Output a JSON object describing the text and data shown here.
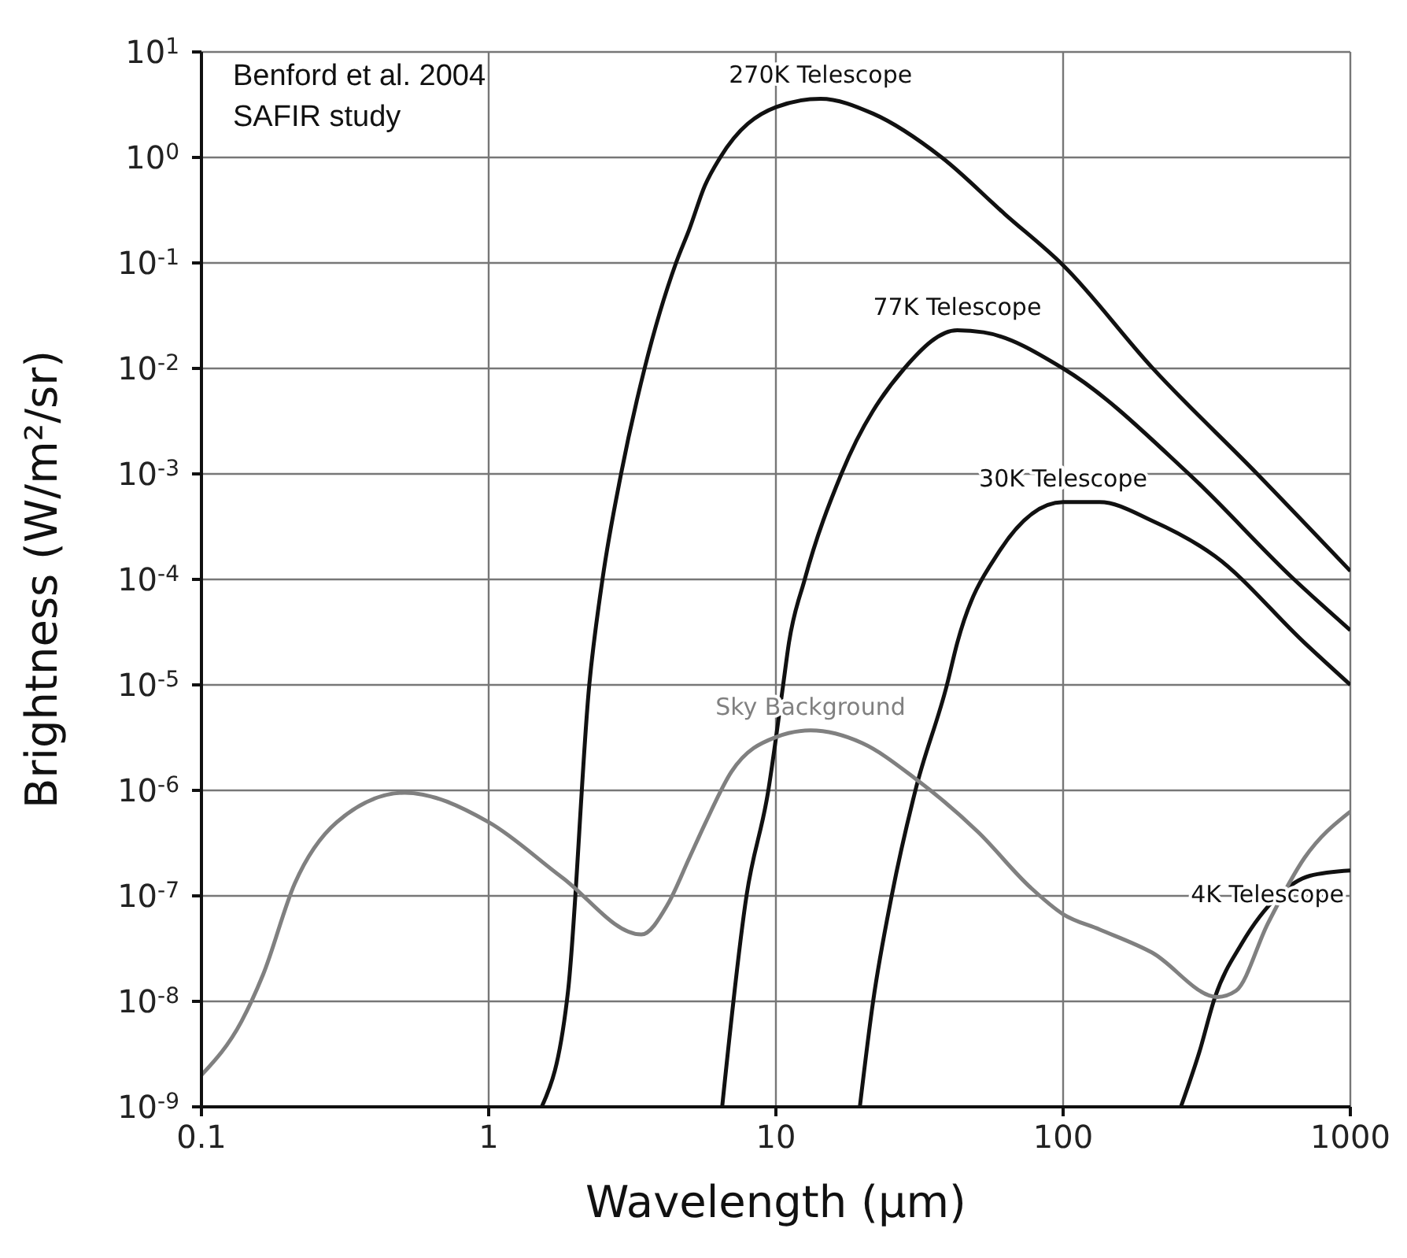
{
  "chart_data": {
    "type": "line",
    "xlabel": "Wavelength (μm)",
    "ylabel": "Brightness (W/m²/sr)",
    "log": "xy",
    "grid": true,
    "marker": "none",
    "line_style": "solid",
    "annotations": [
      "Benford et al. 2004",
      "SAFIR study"
    ],
    "xlim": [
      0.1,
      1000
    ],
    "xticks": [
      0.1,
      1,
      10,
      100,
      1000
    ],
    "ylim": [
      1e-09,
      10
    ],
    "yticks": [
      {
        "value": 1e-09,
        "label": "10$^{-9}$"
      },
      {
        "value": 1e-08,
        "label": "10$^{-8}$"
      },
      {
        "value": 1e-07,
        "label": "10$^{-7}$"
      },
      {
        "value": 1e-06,
        "label": "10$^{-6}$"
      },
      {
        "value": 1e-05,
        "label": "10$^{-5}$"
      },
      {
        "value": 0.0001,
        "label": "10$^{-4}$"
      },
      {
        "value": 0.001,
        "label": "10$^{-3}$"
      },
      {
        "value": 0.01,
        "label": "10$^{-2}$"
      },
      {
        "value": 0.1,
        "label": "10$^{-1}$"
      },
      {
        "value": 1,
        "label": "10$^{0}$"
      },
      {
        "value": 10,
        "label": "10$^{1}$"
      }
    ],
    "series": [
      {
        "name": "270K Telescope",
        "color": "#111111",
        "x": [
          1.53,
          1.89,
          2.24,
          2.49,
          2.89,
          3.49,
          4.49,
          5.0,
          5.66,
          6.4,
          10,
          14.3,
          21.8,
          37.8,
          62.7,
          100,
          204,
          474,
          1000
        ],
        "values": [
          1e-09,
          1.26e-08,
          1e-05,
          0.0001,
          0.001,
          0.01,
          0.1,
          0.21,
          0.54,
          1.0,
          3.0,
          3.6,
          2.6,
          1.0,
          0.29,
          0.095,
          0.0102,
          0.001,
          0.00012
        ]
      },
      {
        "name": "77K Telescope",
        "color": "#111111",
        "x": [
          6.5,
          7.9,
          9.4,
          10.6,
          11.1,
          12.6,
          16.9,
          28,
          42.8,
          52.9,
          100,
          274,
          637,
          1000
        ],
        "values": [
          1e-09,
          1e-07,
          9.8e-07,
          1e-05,
          2.5e-05,
          0.0001,
          0.001,
          0.01,
          0.023,
          0.022,
          0.01,
          0.001,
          0.0001,
          3.3e-05
        ]
      },
      {
        "name": "30K Telescope",
        "color": "#111111",
        "x": [
          19.6,
          21.8,
          25.3,
          30.6,
          39.4,
          42.8,
          60,
          100,
          134,
          204,
          338,
          693,
          1000
        ],
        "values": [
          1e-09,
          1e-08,
          1e-07,
          1e-06,
          1e-05,
          2.5e-05,
          0.000185,
          0.00054,
          0.00054,
          0.00036,
          0.000166,
          2.5e-05,
          1e-05
        ]
      },
      {
        "name": "4K Telescope",
        "color": "#111111",
        "x": [
          257,
          298,
          338,
          418,
          561,
          723,
          1000
        ],
        "values": [
          1e-09,
          3.3e-09,
          1.1e-08,
          3.5e-08,
          1e-07,
          1.55e-07,
          1.74e-07
        ]
      },
      {
        "name": "Sky Background",
        "color": "#808080",
        "x": [
          0.1,
          0.138,
          0.164,
          0.211,
          0.296,
          0.51,
          1,
          1.8,
          3.4,
          4.2,
          5.0,
          5.7,
          7.0,
          10,
          13.2,
          20,
          30.5,
          50.7,
          77,
          100,
          134,
          204,
          345,
          400,
          515,
          693,
          1000
        ],
        "values": [
          2e-09,
          6.5e-09,
          1.8e-08,
          1.3e-07,
          5e-07,
          9.5e-07,
          5e-07,
          1.5e-07,
          4.3e-08,
          8.3e-08,
          2.3e-07,
          5e-07,
          1.5e-06,
          3.2e-06,
          3.7e-06,
          2.8e-06,
          1.3e-06,
          4e-07,
          1.2e-07,
          6.7e-08,
          4.8e-08,
          2.9e-08,
          1.1e-08,
          1.26e-08,
          5.4e-08,
          2.3e-07,
          6.3e-07
        ]
      }
    ]
  }
}
